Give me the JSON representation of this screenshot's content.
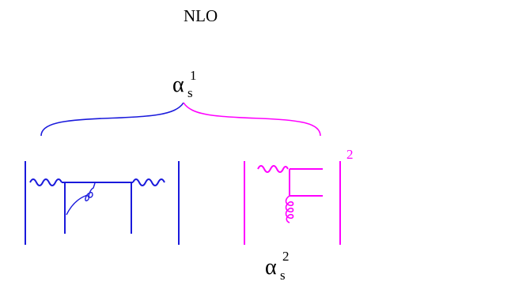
{
  "title": "NLO",
  "coupling_top": {
    "symbol": "α",
    "subscript": "s",
    "power": "1"
  },
  "coupling_bottom": {
    "symbol": "α",
    "subscript": "s",
    "power": "2"
  },
  "squared_exponent": "2",
  "colors": {
    "left_diagram": "#1a1adc",
    "right_diagram": "#ff00ff"
  }
}
